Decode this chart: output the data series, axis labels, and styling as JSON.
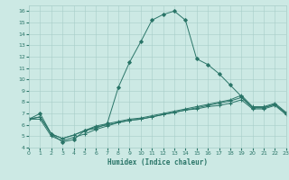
{
  "xlabel": "Humidex (Indice chaleur)",
  "bg_color": "#cce9e4",
  "line_color": "#2a7568",
  "grid_color": "#a8cdc8",
  "xlim": [
    0,
    23
  ],
  "ylim": [
    4,
    16.5
  ],
  "xticks": [
    0,
    1,
    2,
    3,
    4,
    5,
    6,
    7,
    8,
    9,
    10,
    11,
    12,
    13,
    14,
    15,
    16,
    17,
    18,
    19,
    20,
    21,
    22,
    23
  ],
  "yticks": [
    4,
    5,
    6,
    7,
    8,
    9,
    10,
    11,
    12,
    13,
    14,
    15,
    16
  ],
  "line1": {
    "x": [
      0,
      1,
      2,
      3,
      4,
      5,
      6,
      7,
      8,
      9,
      10,
      11,
      12,
      13,
      14,
      15,
      16,
      17,
      18,
      19,
      20,
      21,
      22,
      23
    ],
    "y": [
      6.5,
      7.0,
      5.2,
      4.5,
      4.7,
      5.5,
      5.7,
      6.1,
      9.3,
      11.5,
      13.3,
      15.2,
      15.7,
      16.0,
      15.2,
      11.8,
      11.3,
      10.5,
      9.5,
      8.5,
      7.5,
      7.5,
      7.8,
      7.0
    ],
    "marker": "D",
    "ms": 2.0
  },
  "line2": {
    "x": [
      0,
      1,
      2,
      3,
      4,
      5,
      6,
      7,
      8,
      9,
      10,
      11,
      12,
      13,
      14,
      15,
      16,
      17,
      18,
      19,
      20,
      21,
      22,
      23
    ],
    "y": [
      6.5,
      6.7,
      5.2,
      4.8,
      5.1,
      5.5,
      5.8,
      6.0,
      6.2,
      6.4,
      6.5,
      6.7,
      6.9,
      7.1,
      7.3,
      7.5,
      7.7,
      7.9,
      8.1,
      8.4,
      7.5,
      7.5,
      7.8,
      7.0
    ],
    "marker": "+",
    "ms": 3.0
  },
  "line3": {
    "x": [
      0,
      1,
      2,
      3,
      4,
      5,
      6,
      7,
      8,
      9,
      10,
      11,
      12,
      13,
      14,
      15,
      16,
      17,
      18,
      19,
      20,
      21,
      22,
      23
    ],
    "y": [
      6.5,
      6.7,
      5.2,
      4.8,
      5.1,
      5.5,
      5.9,
      6.1,
      6.3,
      6.5,
      6.6,
      6.8,
      7.0,
      7.2,
      7.4,
      7.6,
      7.8,
      8.0,
      8.2,
      8.6,
      7.6,
      7.6,
      7.9,
      7.1
    ],
    "marker": "+",
    "ms": 3.0
  },
  "line4": {
    "x": [
      0,
      1,
      2,
      3,
      4,
      5,
      6,
      7,
      8,
      9,
      10,
      11,
      12,
      13,
      14,
      15,
      16,
      17,
      18,
      19,
      20,
      21,
      22,
      23
    ],
    "y": [
      6.5,
      6.5,
      5.0,
      4.6,
      4.9,
      5.2,
      5.6,
      5.9,
      6.2,
      6.4,
      6.5,
      6.7,
      6.9,
      7.1,
      7.3,
      7.4,
      7.6,
      7.7,
      7.9,
      8.2,
      7.4,
      7.4,
      7.7,
      6.9
    ],
    "marker": "+",
    "ms": 3.0
  }
}
